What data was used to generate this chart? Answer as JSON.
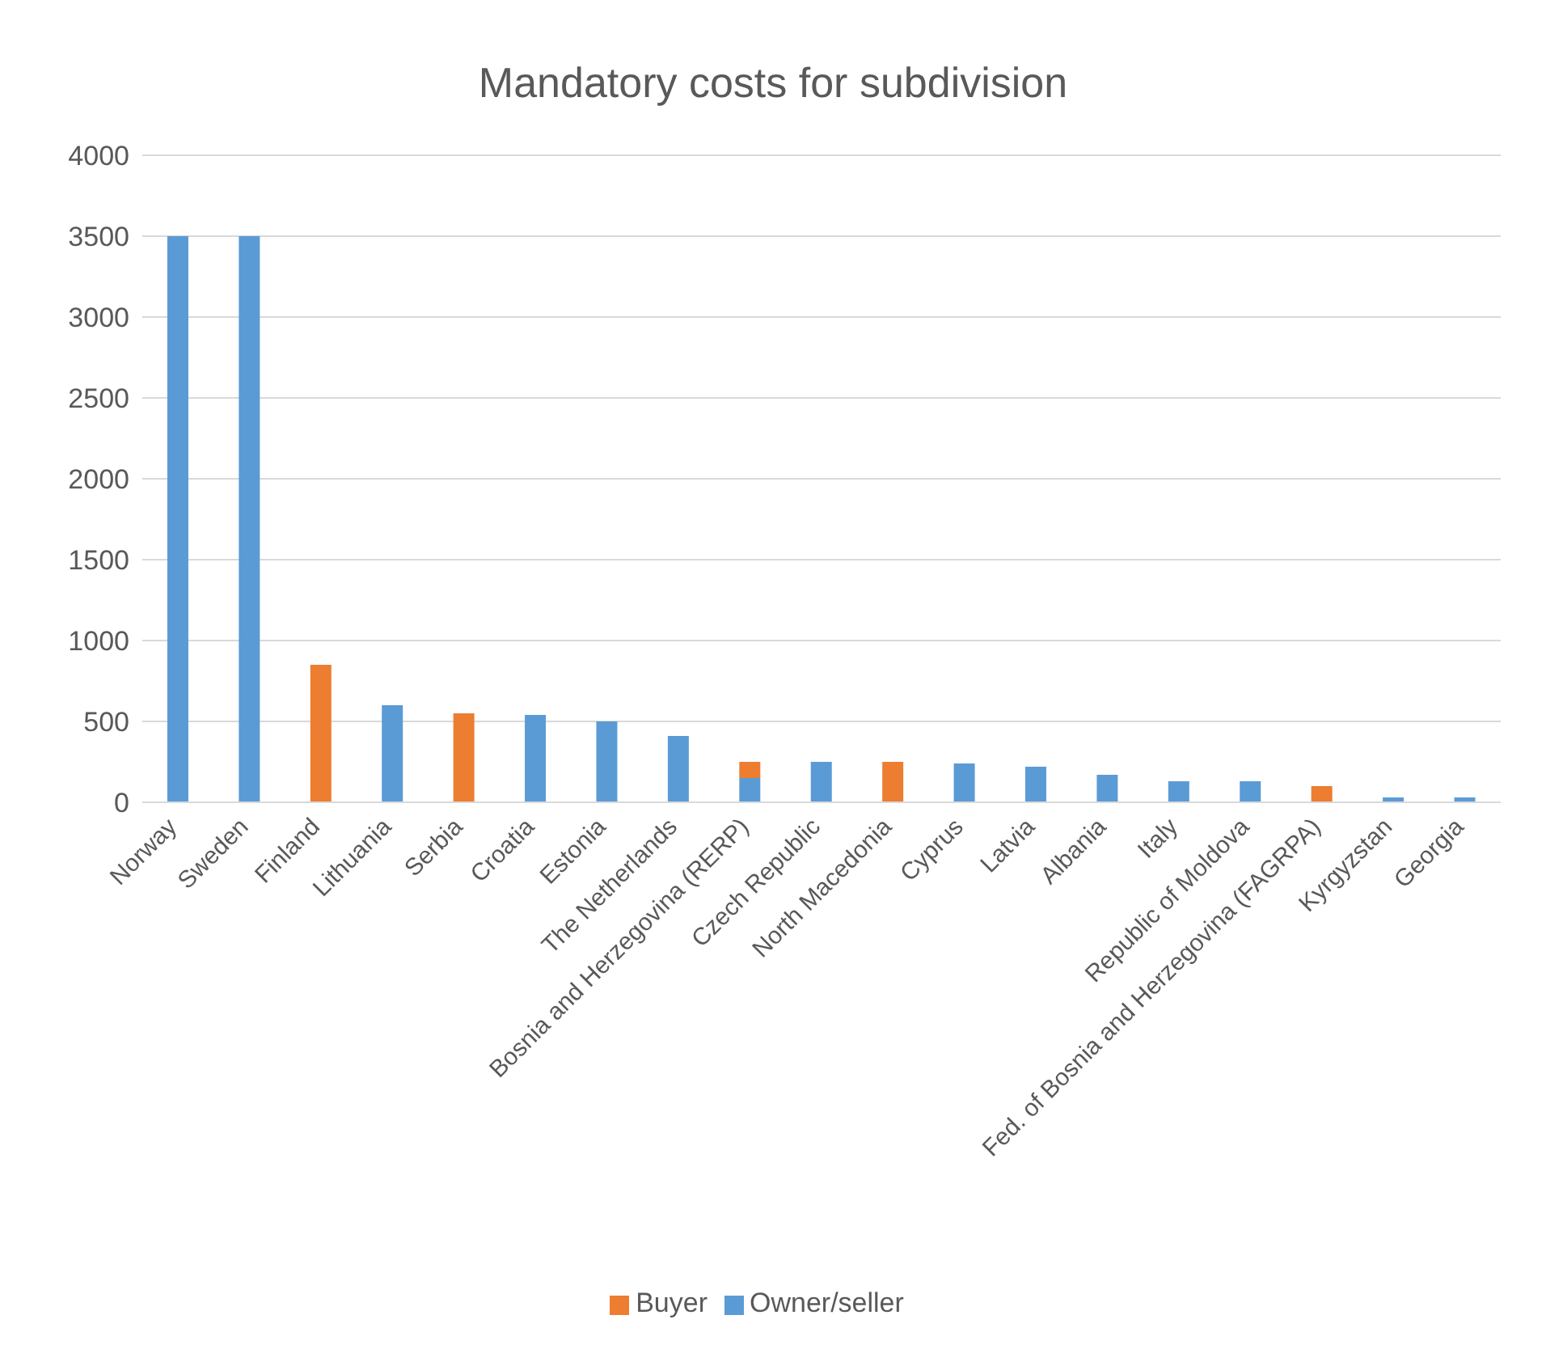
{
  "chart_data": {
    "type": "bar",
    "title": "Mandatory costs for subdivision",
    "stacked": true,
    "categories": [
      "Norway",
      "Sweden",
      "Finland",
      "Lithuania",
      "Serbia",
      "Croatia",
      "Estonia",
      "The Netherlands",
      "Bosnia and Herzegovina (RERP)",
      "Czech Republic",
      "North Macedonia",
      "Cyprus",
      "Latvia",
      "Albania",
      "Italy",
      "Republic of Moldova",
      "Fed. of Bosnia and Herzegovina (FAGRPA)",
      "Kyrgyzstan",
      "Georgia"
    ],
    "series": [
      {
        "name": "Owner/seller",
        "color": "#5b9bd5",
        "values": [
          3500,
          3500,
          null,
          600,
          null,
          540,
          500,
          410,
          150,
          250,
          null,
          240,
          220,
          170,
          130,
          130,
          null,
          30,
          30
        ]
      },
      {
        "name": "Buyer",
        "color": "#ed7d31",
        "values": [
          null,
          null,
          850,
          null,
          550,
          null,
          null,
          null,
          100,
          null,
          250,
          null,
          null,
          null,
          null,
          null,
          100,
          null,
          null
        ]
      }
    ],
    "ylim": [
      0,
      4000
    ],
    "yticks": [
      0,
      500,
      1000,
      1500,
      2000,
      2500,
      3000,
      3500,
      4000
    ],
    "grid": "y",
    "legend": "bottom"
  }
}
